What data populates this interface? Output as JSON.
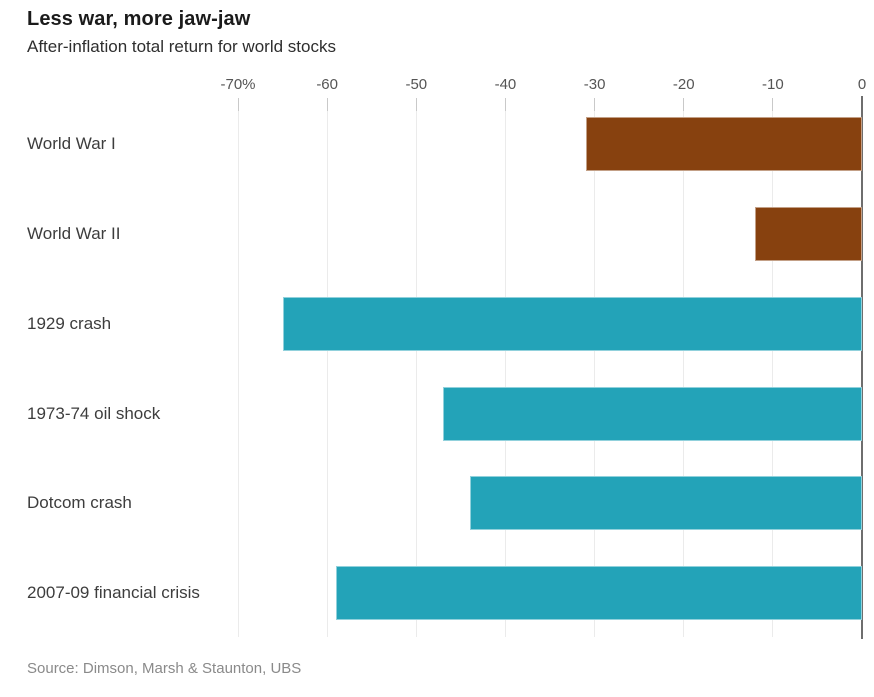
{
  "header": {
    "title": "Less war, more jaw-jaw",
    "subtitle": "After-inflation total return for world stocks"
  },
  "footer": {
    "source": "Source: Dimson, Marsh & Staunton, UBS"
  },
  "chart_data": {
    "type": "bar",
    "orientation": "horizontal",
    "title": "Less war, more jaw-jaw",
    "subtitle": "After-inflation total return for world stocks",
    "source": "Source: Dimson, Marsh & Staunton, UBS",
    "categories": [
      "World War I",
      "World War II",
      "1929 crash",
      "1973-74 oil shock",
      "Dotcom crash",
      "2007-09 financial crisis"
    ],
    "values": [
      -31,
      -12,
      -65,
      -47,
      -44,
      -59
    ],
    "unit": "%",
    "xlim": [
      -70,
      0
    ],
    "x_tick_values": [
      -70,
      -60,
      -50,
      -40,
      -30,
      -20,
      -10,
      0
    ],
    "x_tick_labels": [
      "-70%",
      "-60",
      "-50",
      "-40",
      "-30",
      "-20",
      "-10",
      "0"
    ],
    "bar_colors": [
      "#87410F",
      "#87410F",
      "#23A3B8",
      "#23A3B8",
      "#23A3B8",
      "#23A3B8"
    ],
    "colors": {
      "war_bar": "#87410F",
      "crisis_bar": "#23A3B8",
      "gridline": "#EBEBEB",
      "tick": "#C9C9C9",
      "zero_line": "#6E6E6E"
    },
    "legend": "none",
    "grid": "vertical-light",
    "value_labels_shown": false
  }
}
